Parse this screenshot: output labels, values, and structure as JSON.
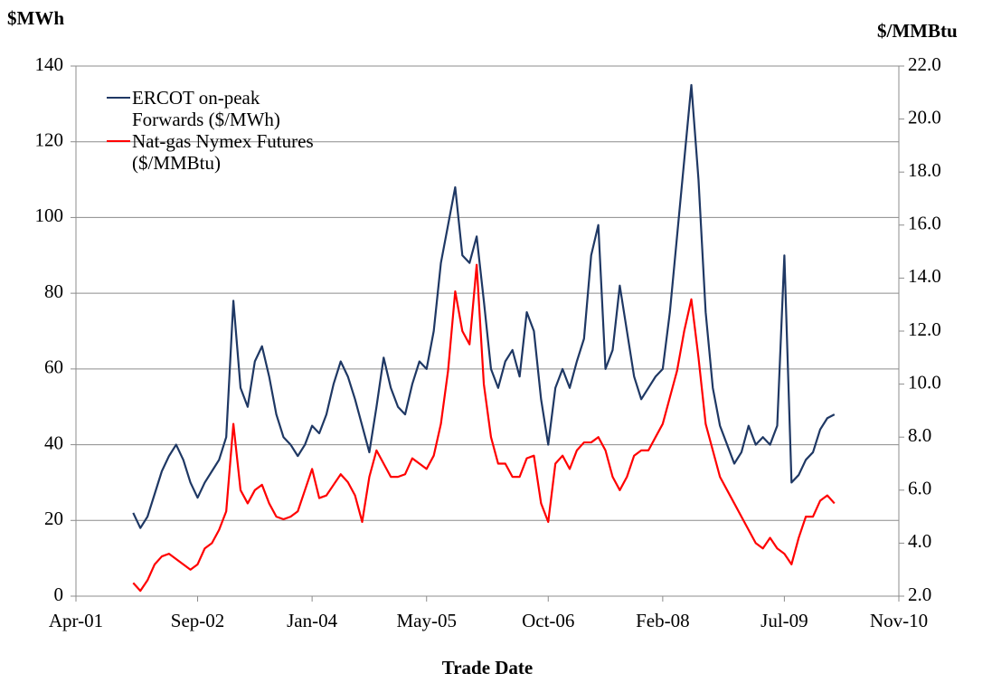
{
  "chart_data": {
    "type": "line",
    "y_label": "$MWh",
    "y2_label": "$/MMBtu",
    "x_label": "Trade Date",
    "x": [
      "2001-12",
      "2002-01",
      "2002-02",
      "2002-03",
      "2002-04",
      "2002-05",
      "2002-06",
      "2002-07",
      "2002-08",
      "2002-09",
      "2002-10",
      "2002-11",
      "2002-12",
      "2003-01",
      "2003-02",
      "2003-03",
      "2003-04",
      "2003-05",
      "2003-06",
      "2003-07",
      "2003-08",
      "2003-09",
      "2003-10",
      "2003-11",
      "2003-12",
      "2004-01",
      "2004-02",
      "2004-03",
      "2004-04",
      "2004-05",
      "2004-06",
      "2004-07",
      "2004-08",
      "2004-09",
      "2004-10",
      "2004-11",
      "2004-12",
      "2005-01",
      "2005-02",
      "2005-03",
      "2005-04",
      "2005-05",
      "2005-06",
      "2005-07",
      "2005-08",
      "2005-09",
      "2005-10",
      "2005-11",
      "2005-12",
      "2006-01",
      "2006-02",
      "2006-03",
      "2006-04",
      "2006-05",
      "2006-06",
      "2006-07",
      "2006-08",
      "2006-09",
      "2006-10",
      "2006-11",
      "2006-12",
      "2007-01",
      "2007-02",
      "2007-03",
      "2007-04",
      "2007-05",
      "2007-06",
      "2007-07",
      "2007-08",
      "2007-09",
      "2007-10",
      "2007-11",
      "2007-12",
      "2008-01",
      "2008-02",
      "2008-03",
      "2008-04",
      "2008-05",
      "2008-06",
      "2008-07",
      "2008-08",
      "2008-09",
      "2008-10",
      "2008-11",
      "2008-12",
      "2009-01",
      "2009-02",
      "2009-03",
      "2009-04",
      "2009-05",
      "2009-06",
      "2009-07",
      "2009-08",
      "2009-09",
      "2009-10",
      "2009-11",
      "2009-12",
      "2010-01",
      "2010-02"
    ],
    "series": [
      {
        "name": "ERCOT on-peak Forwards ($/MWh)",
        "color": "#1f3864",
        "values": [
          22,
          18,
          21,
          27,
          33,
          37,
          40,
          36,
          30,
          26,
          30,
          33,
          36,
          42,
          78,
          55,
          50,
          62,
          66,
          58,
          48,
          42,
          40,
          37,
          40,
          45,
          43,
          48,
          56,
          62,
          58,
          52,
          45,
          38,
          50,
          63,
          55,
          50,
          48,
          56,
          62,
          60,
          70,
          88,
          98,
          108,
          90,
          88,
          95,
          78,
          60,
          55,
          62,
          65,
          58,
          75,
          70,
          52,
          40,
          55,
          60,
          55,
          62,
          68,
          90,
          98,
          60,
          65,
          82,
          70,
          58,
          52,
          55,
          58,
          60,
          75,
          95,
          115,
          135,
          110,
          75,
          55,
          45,
          40,
          35,
          38,
          45,
          40,
          42,
          40,
          45,
          90,
          30,
          32,
          36,
          38,
          44,
          47,
          48
        ]
      },
      {
        "name": "Nat-gas Nymex Futures ($/MMBtu)",
        "color": "#ff0000",
        "axis": "y2",
        "values": [
          2.5,
          2.2,
          2.6,
          3.2,
          3.5,
          3.6,
          3.4,
          3.2,
          3.0,
          3.2,
          3.8,
          4.0,
          4.5,
          5.2,
          8.5,
          6.0,
          5.5,
          6.0,
          6.2,
          5.5,
          5.0,
          4.9,
          5.0,
          5.2,
          6.0,
          6.8,
          5.7,
          5.8,
          6.2,
          6.6,
          6.3,
          5.8,
          4.8,
          6.5,
          7.5,
          7.0,
          6.5,
          6.5,
          6.6,
          7.2,
          7.0,
          6.8,
          7.3,
          8.5,
          10.5,
          13.5,
          12.0,
          11.5,
          14.5,
          10.0,
          8.0,
          7.0,
          7.0,
          6.5,
          6.5,
          7.2,
          7.3,
          5.5,
          4.8,
          7.0,
          7.3,
          6.8,
          7.5,
          7.8,
          7.8,
          8.0,
          7.5,
          6.5,
          6.0,
          6.5,
          7.3,
          7.5,
          7.5,
          8.0,
          8.5,
          9.5,
          10.5,
          12.0,
          13.2,
          11.0,
          8.5,
          7.5,
          6.5,
          6.0,
          5.5,
          5.0,
          4.5,
          4.0,
          3.8,
          4.2,
          3.8,
          3.6,
          3.2,
          4.2,
          5.0,
          5.0,
          5.6,
          5.8,
          5.5
        ]
      }
    ],
    "xlim": [
      "2001-04",
      "2010-11"
    ],
    "xticks": [
      {
        "value": "2001-04",
        "label": "Apr-01"
      },
      {
        "value": "2002-09",
        "label": "Sep-02"
      },
      {
        "value": "2004-01",
        "label": "Jan-04"
      },
      {
        "value": "2005-05",
        "label": "May-05"
      },
      {
        "value": "2006-10",
        "label": "Oct-06"
      },
      {
        "value": "2008-02",
        "label": "Feb-08"
      },
      {
        "value": "2009-07",
        "label": "Jul-09"
      },
      {
        "value": "2010-11",
        "label": "Nov-10"
      }
    ],
    "ylim": [
      0,
      140
    ],
    "yticks": [
      0,
      20,
      40,
      60,
      80,
      100,
      120,
      140
    ],
    "y2lim": [
      2,
      22
    ],
    "y2ticks": [
      {
        "value": 2,
        "label": "2.0"
      },
      {
        "value": 4,
        "label": "4.0"
      },
      {
        "value": 6,
        "label": "6.0"
      },
      {
        "value": 8,
        "label": "8.0"
      },
      {
        "value": 10,
        "label": "10.0"
      },
      {
        "value": 12,
        "label": "12.0"
      },
      {
        "value": 14,
        "label": "14.0"
      },
      {
        "value": 16,
        "label": "16.0"
      },
      {
        "value": 18,
        "label": "18.0"
      },
      {
        "value": 20,
        "label": "20.0"
      },
      {
        "value": 22,
        "label": "22.0"
      }
    ],
    "grid": true,
    "legend": "upper left"
  }
}
